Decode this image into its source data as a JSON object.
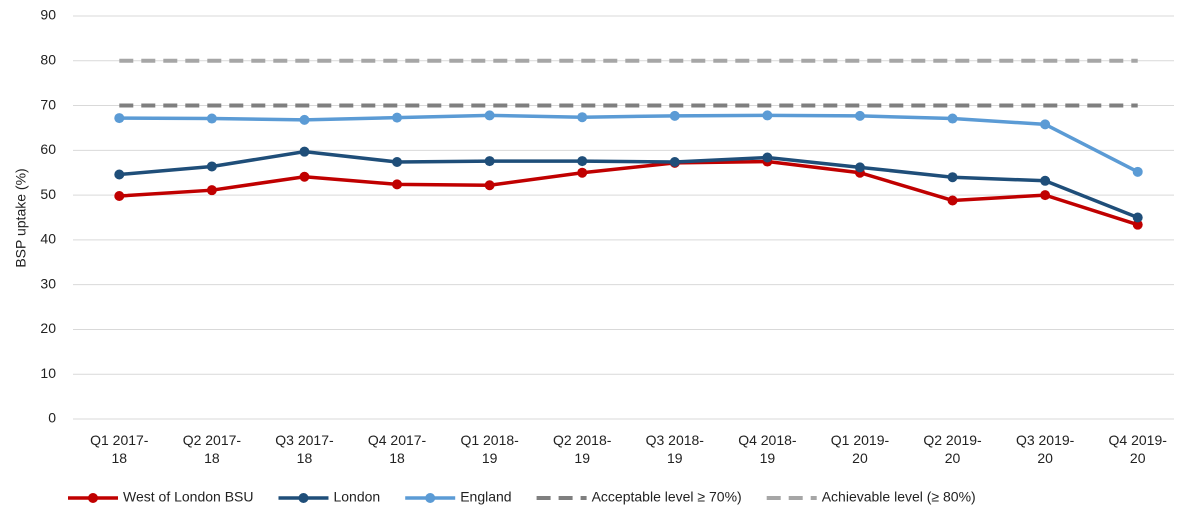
{
  "chart_data": {
    "type": "line",
    "y_label": "BSP uptake (%)",
    "categories": [
      "Q1 2017-18",
      "Q2 2017-18",
      "Q3 2017-18",
      "Q4 2017-18",
      "Q1 2018-19",
      "Q2 2018-19",
      "Q3 2018-19",
      "Q4 2018-19",
      "Q1 2019-20",
      "Q2 2019-20",
      "Q3 2019-20",
      "Q4 2019-20"
    ],
    "series": [
      {
        "name": "West of London BSU",
        "color": "#c00000",
        "markers": true,
        "values": [
          49.8,
          51.1,
          54.1,
          52.4,
          52.2,
          55.0,
          57.2,
          57.5,
          55.0,
          48.8,
          50.0,
          43.4
        ]
      },
      {
        "name": "London",
        "color": "#1f4e79",
        "markers": true,
        "values": [
          54.6,
          56.4,
          59.7,
          57.4,
          57.6,
          57.6,
          57.4,
          58.4,
          56.2,
          54.0,
          53.2,
          45.0
        ]
      },
      {
        "name": "England",
        "color": "#5b9bd5",
        "markers": true,
        "values": [
          67.2,
          67.1,
          66.8,
          67.3,
          67.8,
          67.4,
          67.7,
          67.8,
          67.7,
          67.1,
          65.8,
          55.2
        ]
      },
      {
        "name": "Acceptable level  ≥ 70%)",
        "color": "#7f7f7f",
        "dashed": true,
        "markers": false,
        "values": [
          70,
          70,
          70,
          70,
          70,
          70,
          70,
          70,
          70,
          70,
          70,
          70
        ]
      },
      {
        "name": "Achievable level  (≥ 80%)",
        "color": "#a6a6a6",
        "dashed": true,
        "markers": false,
        "values": [
          80,
          80,
          80,
          80,
          80,
          80,
          80,
          80,
          80,
          80,
          80,
          80
        ]
      }
    ],
    "ylim": [
      0,
      90
    ],
    "yticks": [
      0,
      10,
      20,
      30,
      40,
      50,
      60,
      70,
      80,
      90
    ],
    "grid": true,
    "legend": "bottom"
  }
}
